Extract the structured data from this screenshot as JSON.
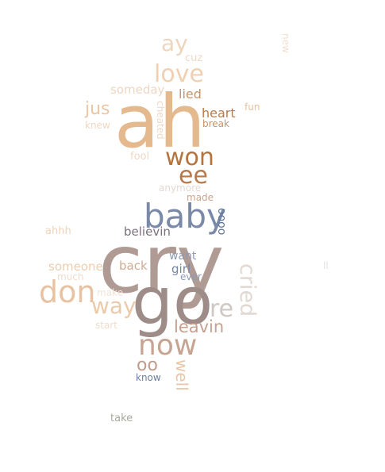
{
  "words": {
    "cry": {
      "text": "cry",
      "color": "#b09a94"
    },
    "ah": {
      "text": "ah",
      "color": "#e4b98e"
    },
    "go": {
      "text": "go",
      "color": "#9e8c88"
    },
    "baby": {
      "text": "baby",
      "color": "#7a89a8"
    },
    "don": {
      "text": "don",
      "color": "#e7c3a3"
    },
    "now": {
      "text": "now",
      "color": "#c7a392"
    },
    "won": {
      "text": "won",
      "color": "#b5733d"
    },
    "love": {
      "text": "love",
      "color": "#efd0b2"
    },
    "ay": {
      "text": "ay",
      "color": "#eed5bd"
    },
    "ee": {
      "text": "ee",
      "color": "#b77a4c"
    },
    "way": {
      "text": "way",
      "color": "#ebcaa9"
    },
    "re": {
      "text": "re",
      "color": "#cfc7c3"
    },
    "cried": {
      "text": "cried",
      "color": "#e1d8d2"
    },
    "leavin": {
      "text": "leavin",
      "color": "#c6a190"
    },
    "jus": {
      "text": "jus",
      "color": "#e8c6a6"
    },
    "oo": {
      "text": "oo",
      "color": "#c29b8b"
    },
    "well": {
      "text": "well",
      "color": "#e9c6a6"
    },
    "heart": {
      "text": "heart",
      "color": "#b87a48"
    },
    "lied": {
      "text": "lied",
      "color": "#c69467"
    },
    "someday": {
      "text": "someday",
      "color": "#ecd7c4"
    },
    "believin": {
      "text": "believin",
      "color": "#7b6f7d"
    },
    "oooo": {
      "text": "oooo",
      "color": "#5f7498"
    },
    "someone": {
      "text": "someone",
      "color": "#ebcdb1"
    },
    "back": {
      "text": "back",
      "color": "#cfac91"
    },
    "want": {
      "text": "want",
      "color": "#8c9ab4"
    },
    "girl": {
      "text": "girl",
      "color": "#7486a6"
    },
    "cuz": {
      "text": "cuz",
      "color": "#eed8c6"
    },
    "break": {
      "text": "break",
      "color": "#c4946a"
    },
    "fun": {
      "text": "fun",
      "color": "#e6c29e"
    },
    "cheated": {
      "text": "cheated",
      "color": "#ecd8c5"
    },
    "knew": {
      "text": "knew",
      "color": "#f0d7c1"
    },
    "fool": {
      "text": "fool",
      "color": "#f0d8c3"
    },
    "anymore": {
      "text": "anymore",
      "color": "#e4d8d2"
    },
    "made": {
      "text": "made",
      "color": "#c9a48c"
    },
    "ahhh": {
      "text": "ahhh",
      "color": "#f0d3b8"
    },
    "much": {
      "text": "much",
      "color": "#f0dccd"
    },
    "ever": {
      "text": "ever",
      "color": "#8b9ab8"
    },
    "make": {
      "text": "make",
      "color": "#f3e3d6"
    },
    "start": {
      "text": "start",
      "color": "#f1dccb"
    },
    "know": {
      "text": "know",
      "color": "#6d80a2"
    },
    "take": {
      "text": "take",
      "color": "#a6aa9f"
    },
    "new": {
      "text": "new",
      "color": "#f1dfcf"
    },
    "ll": {
      "text": "ll",
      "color": "#e2e3e6"
    }
  }
}
